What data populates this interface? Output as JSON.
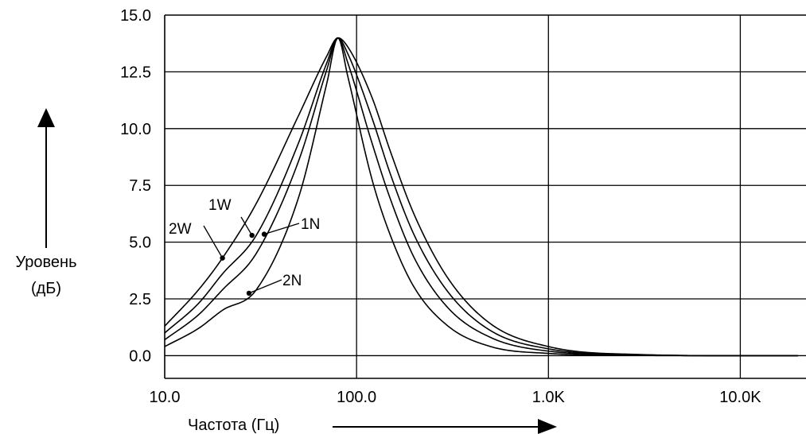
{
  "chart_data": {
    "type": "line",
    "xscale": "log",
    "xlim": [
      10,
      22000
    ],
    "ylim": [
      -1,
      15
    ],
    "grid": true,
    "xlabel": "Частота (Гц)",
    "ylabel": "Уровень\n(дБ)",
    "x_ticks": [
      {
        "value": 10,
        "label": "10.0"
      },
      {
        "value": 100,
        "label": "100.0"
      },
      {
        "value": 1000,
        "label": "1.0K"
      },
      {
        "value": 10000,
        "label": "10.0K"
      }
    ],
    "y_ticks": [
      {
        "value": 0,
        "label": "0.0"
      },
      {
        "value": 2.5,
        "label": "2.5"
      },
      {
        "value": 5,
        "label": "5.0"
      },
      {
        "value": 7.5,
        "label": "7.5"
      },
      {
        "value": 10,
        "label": "10.0"
      },
      {
        "value": 12.5,
        "label": "12.5"
      },
      {
        "value": 15,
        "label": "15.0"
      }
    ],
    "series": [
      {
        "name": "2W",
        "x": [
          10,
          15,
          20,
          30,
          50,
          70,
          80,
          90,
          120,
          150,
          200,
          300,
          500,
          1000,
          3000,
          10000,
          20000
        ],
        "y": [
          1.3,
          2.9,
          4.3,
          6.7,
          10.6,
          13.2,
          14.0,
          13.6,
          11.4,
          9.0,
          6.2,
          3.4,
          1.4,
          0.4,
          0.05,
          0.0,
          0.0
        ]
      },
      {
        "name": "1W",
        "x": [
          10,
          15,
          20,
          30,
          50,
          70,
          80,
          90,
          120,
          150,
          200,
          300,
          500,
          1000,
          3000,
          10000,
          20000
        ],
        "y": [
          1.0,
          2.3,
          3.6,
          5.3,
          9.4,
          12.9,
          14.0,
          13.3,
          10.5,
          8.0,
          5.3,
          2.8,
          1.1,
          0.3,
          0.04,
          0.0,
          0.0
        ]
      },
      {
        "name": "1N",
        "x": [
          10,
          15,
          20,
          30,
          50,
          70,
          80,
          90,
          120,
          150,
          200,
          300,
          500,
          1000,
          3000,
          10000,
          20000
        ],
        "y": [
          0.7,
          1.8,
          2.9,
          4.5,
          8.6,
          12.6,
          14.0,
          12.9,
          9.4,
          6.9,
          4.3,
          2.1,
          0.8,
          0.2,
          0.03,
          0.0,
          0.0
        ]
      },
      {
        "name": "2N",
        "x": [
          10,
          15,
          20,
          30,
          50,
          70,
          80,
          90,
          120,
          150,
          200,
          300,
          500,
          1000,
          3000,
          10000,
          20000
        ],
        "y": [
          0.4,
          1.2,
          2.0,
          2.9,
          7.0,
          12.0,
          14.0,
          12.3,
          7.8,
          5.3,
          3.0,
          1.3,
          0.4,
          0.1,
          0.01,
          0.0,
          0.0
        ]
      }
    ],
    "annotations": [
      {
        "label": "2W",
        "series": "2W",
        "x": 20,
        "y": 4.3
      },
      {
        "label": "1W",
        "series": "1W",
        "x": 28.5,
        "y": 5.3
      },
      {
        "label": "1N",
        "series": "1N",
        "x": 33,
        "y": 5.35
      },
      {
        "label": "2N",
        "series": "2N",
        "x": 27.5,
        "y": 2.75
      }
    ],
    "colors": {
      "line": "#000000",
      "grid": "#000000",
      "background": "#ffffff"
    }
  }
}
